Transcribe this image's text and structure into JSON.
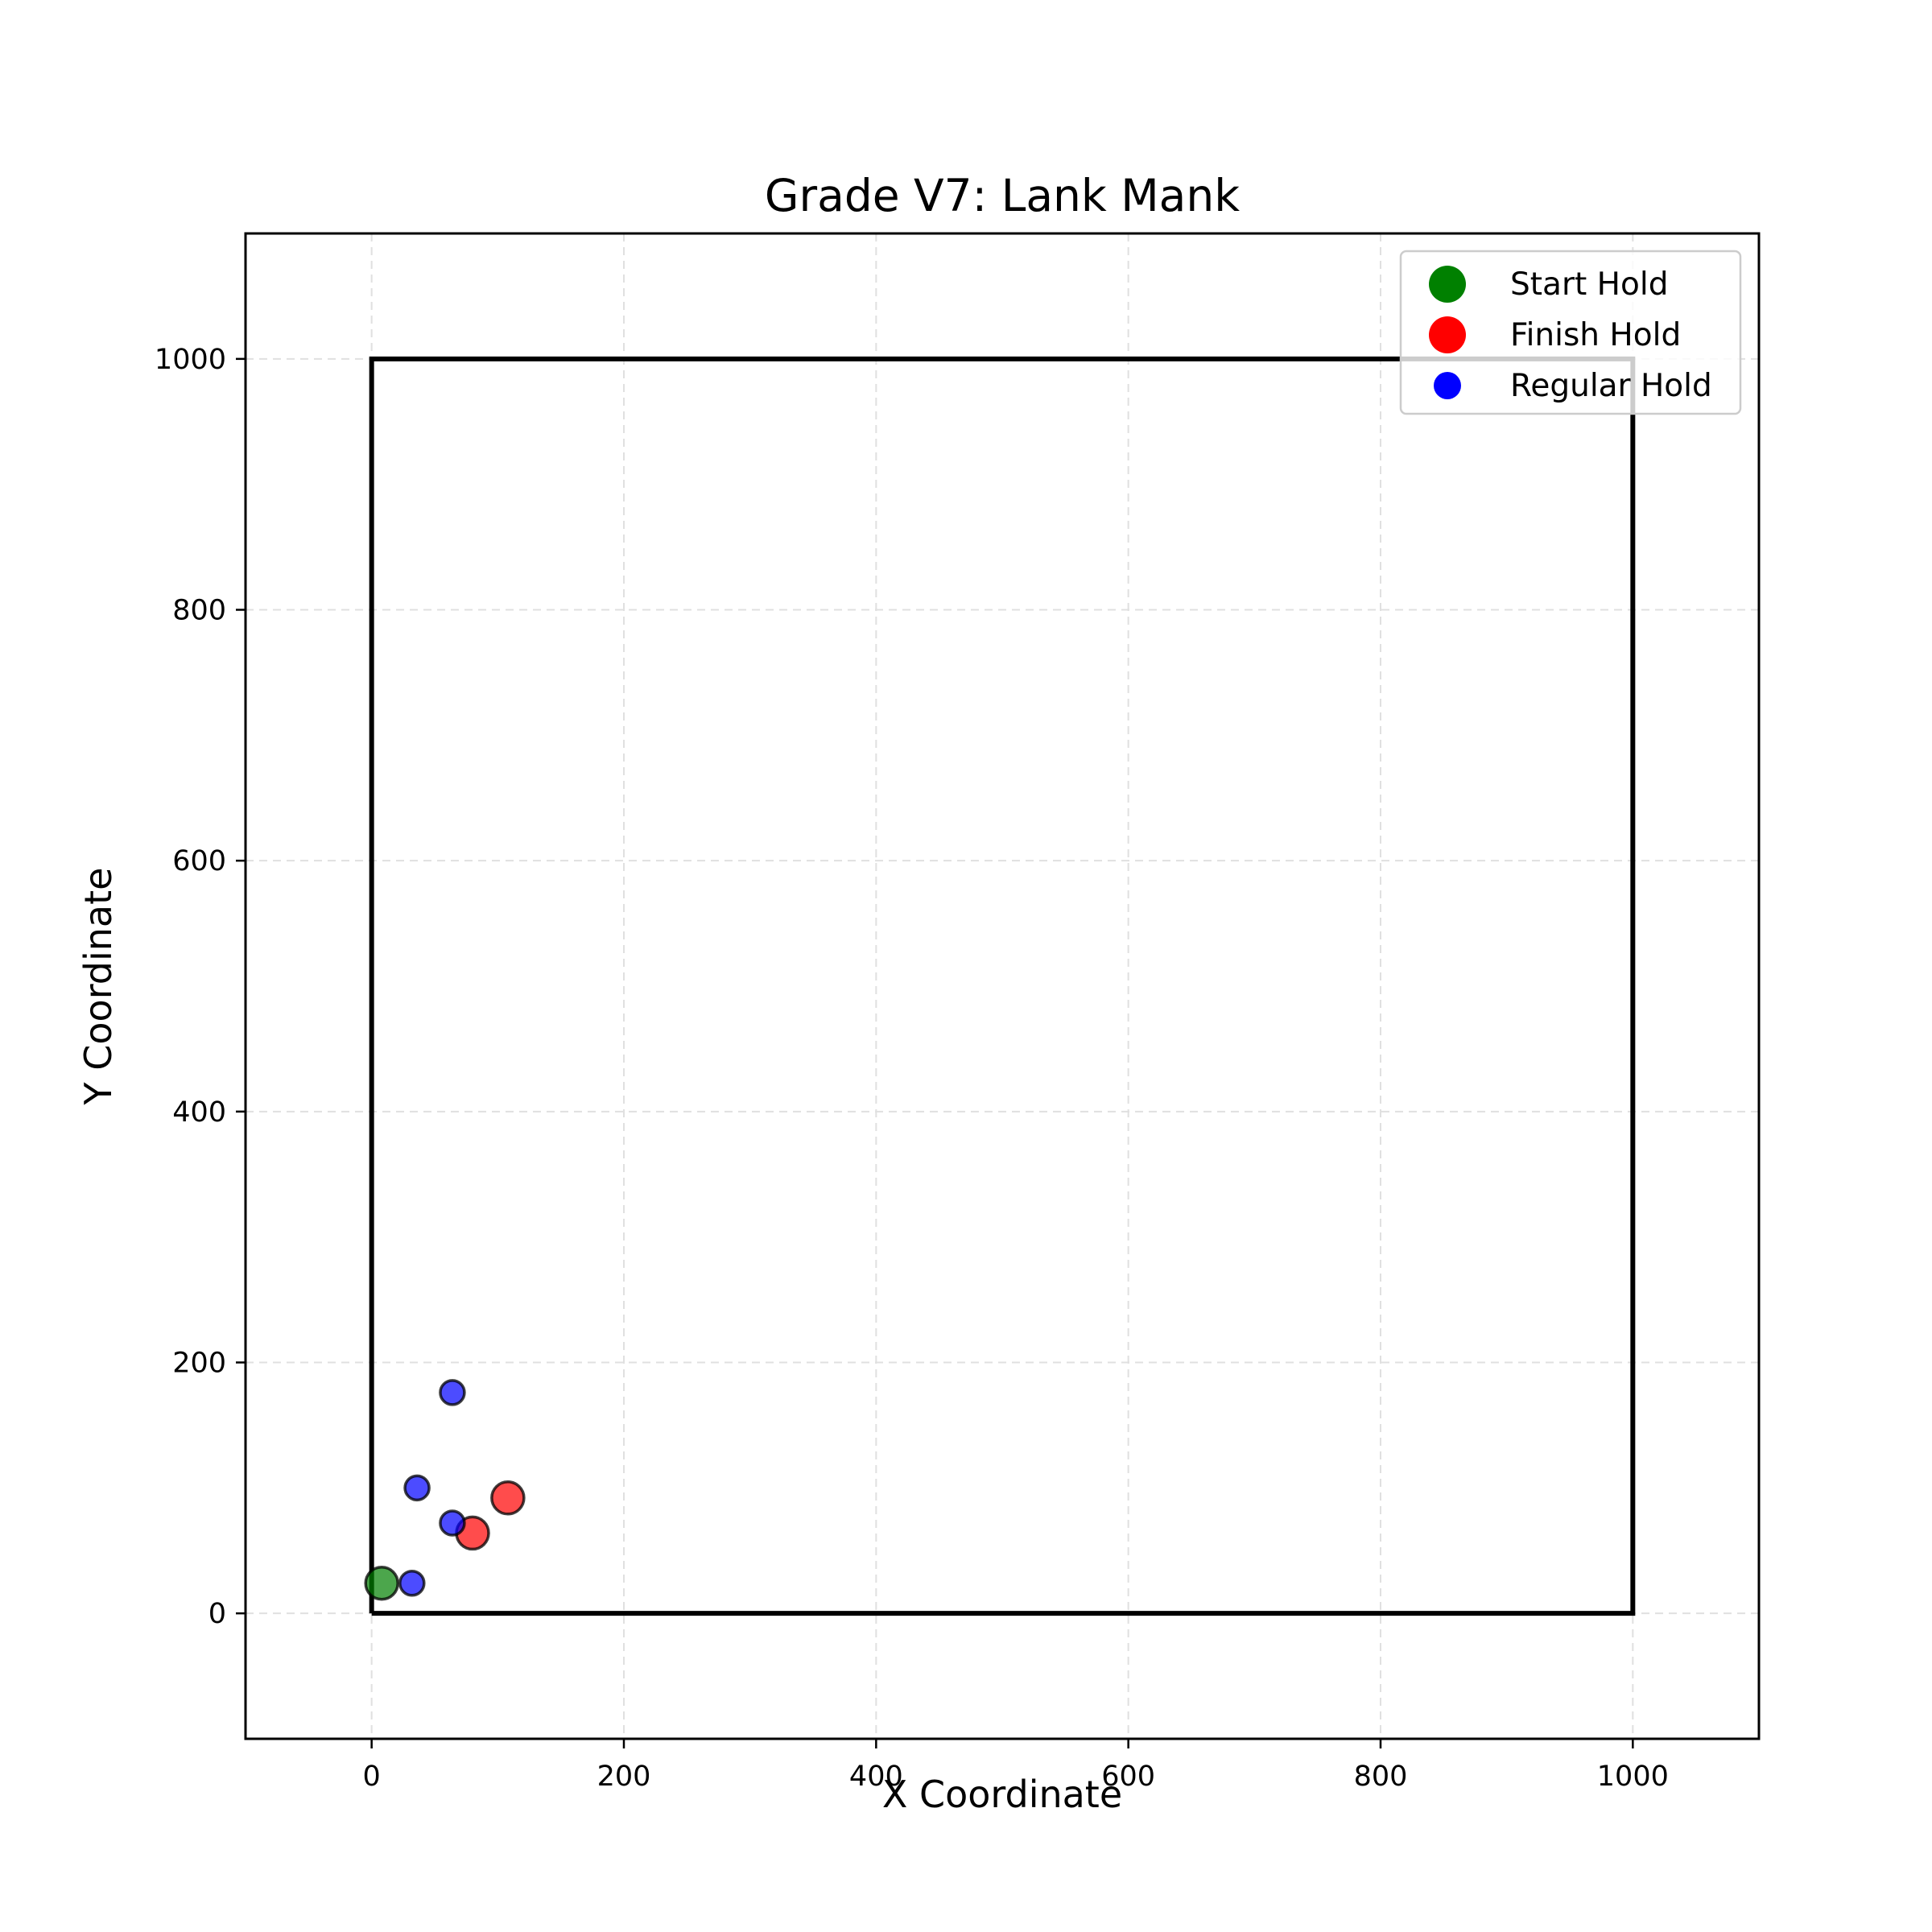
{
  "chart_data": {
    "type": "scatter",
    "title": "Grade V7: Lank Mank",
    "xlabel": "X Coordinate",
    "ylabel": "Y Coordinate",
    "xlim": [
      -100,
      1100
    ],
    "ylim": [
      -100,
      1100
    ],
    "xticks": [
      0,
      200,
      400,
      600,
      800,
      1000
    ],
    "yticks": [
      0,
      200,
      400,
      600,
      800,
      1000
    ],
    "grid": true,
    "grid_style": "dashed",
    "legend_position": "upper right",
    "board_outline": [
      [
        0,
        0
      ],
      [
        1000,
        0
      ],
      [
        1000,
        1000
      ],
      [
        0,
        1000
      ],
      [
        0,
        0
      ]
    ],
    "series": [
      {
        "name": "Start Hold",
        "color": "#008000",
        "size": "large",
        "points": [
          {
            "x": 8,
            "y": 24
          }
        ]
      },
      {
        "name": "Finish Hold",
        "color": "#ff0000",
        "size": "large",
        "points": [
          {
            "x": 108,
            "y": 92
          },
          {
            "x": 80,
            "y": 64
          }
        ]
      },
      {
        "name": "Regular Hold",
        "color": "#0000ff",
        "size": "small",
        "points": [
          {
            "x": 64,
            "y": 176
          },
          {
            "x": 36,
            "y": 100
          },
          {
            "x": 64,
            "y": 72
          },
          {
            "x": 32,
            "y": 24
          }
        ]
      }
    ]
  }
}
